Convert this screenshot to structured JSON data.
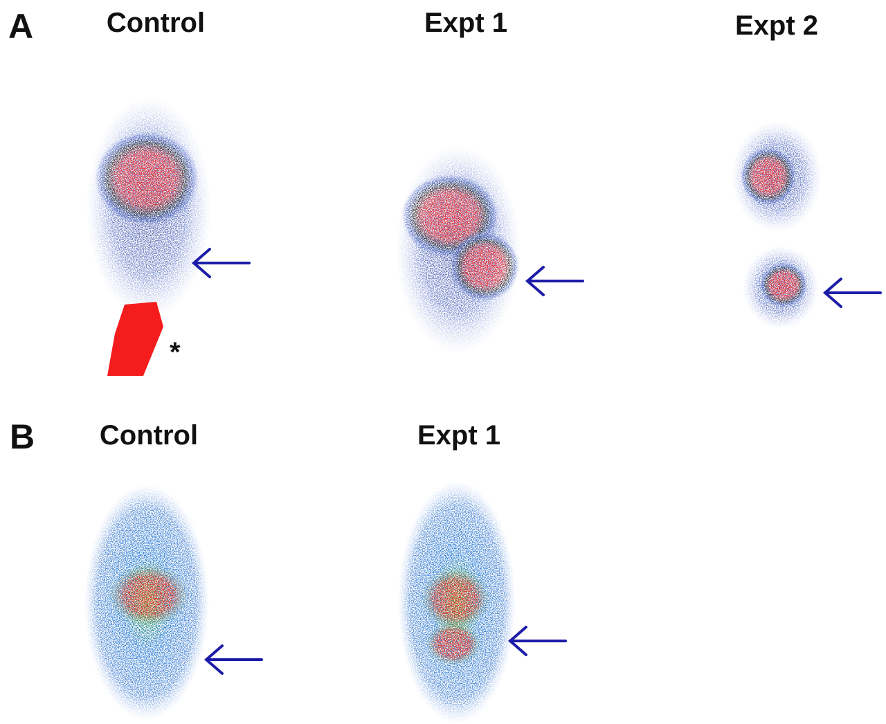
{
  "panels": [
    {
      "label": "A",
      "images": [
        {
          "title": "Control"
        },
        {
          "title": "Expt 1"
        },
        {
          "title": "Expt 2"
        }
      ]
    },
    {
      "label": "B",
      "images": [
        {
          "title": "Control"
        },
        {
          "title": "Expt 1"
        }
      ]
    }
  ],
  "annotations": {
    "asterisk": "*"
  }
}
